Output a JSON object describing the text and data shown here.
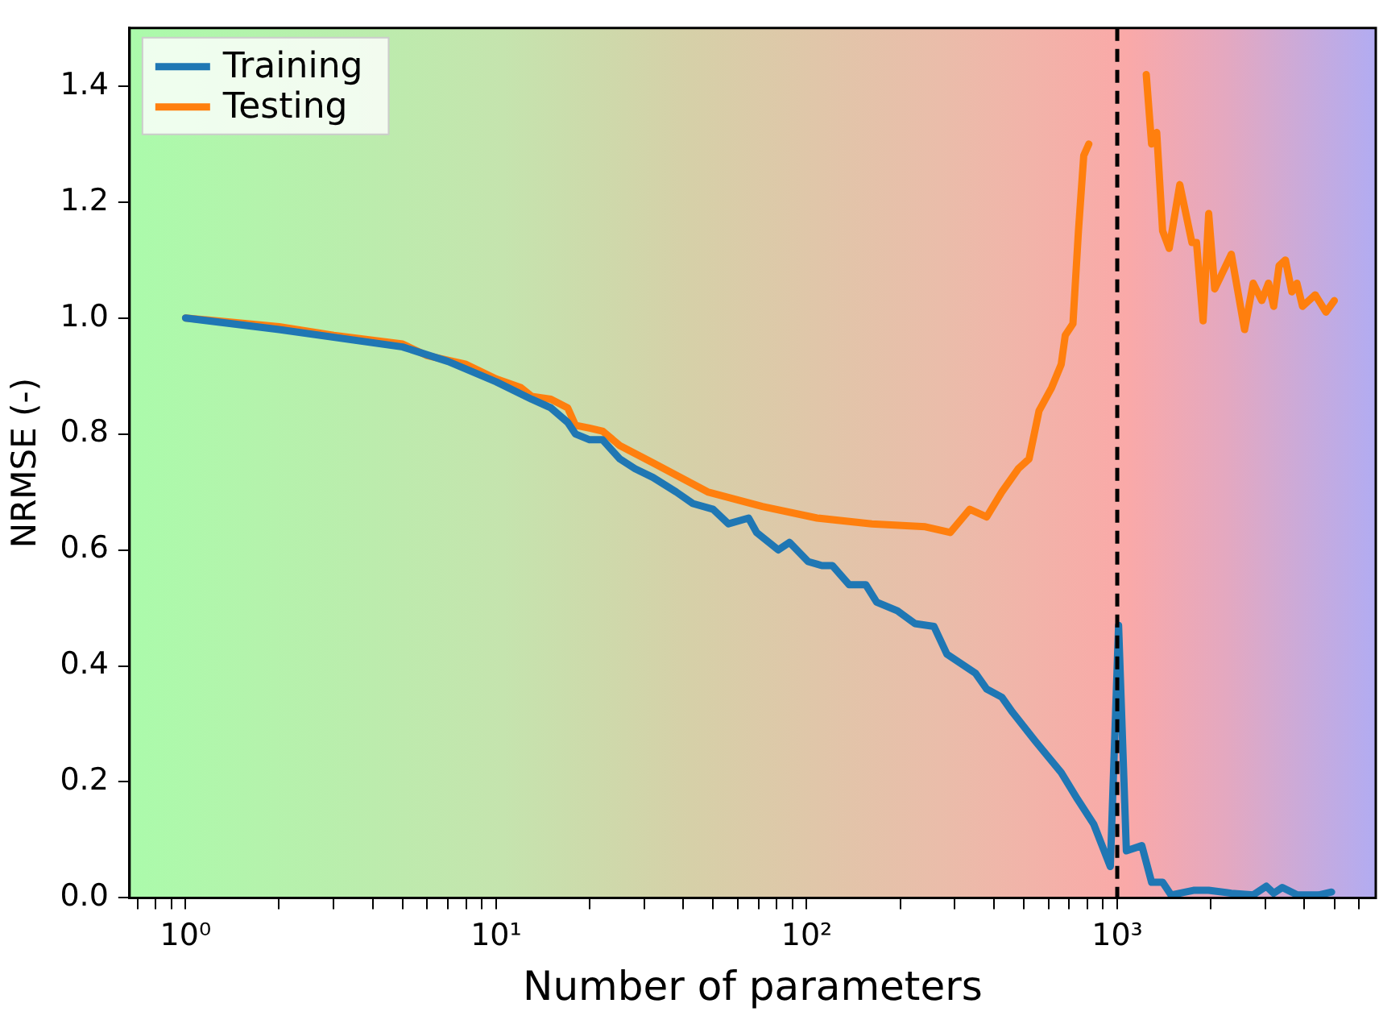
{
  "chart_data": {
    "type": "line",
    "xlabel": "Number of parameters",
    "ylabel": "NRMSE (-)",
    "log": "x",
    "grid": false,
    "legend": "top left",
    "marker": "none",
    "line_style": "solid",
    "xlim": [
      0.66,
      6800
    ],
    "ylim": [
      0,
      1.5
    ],
    "xticks": [
      {
        "value": 0.7,
        "label": null
      },
      {
        "value": 0.8,
        "label": null
      },
      {
        "value": 0.9,
        "label": null
      },
      {
        "value": 1,
        "label": "10⁰"
      },
      {
        "value": 2,
        "label": null
      },
      {
        "value": 3,
        "label": null
      },
      {
        "value": 4,
        "label": null
      },
      {
        "value": 5,
        "label": null
      },
      {
        "value": 6,
        "label": null
      },
      {
        "value": 7,
        "label": null
      },
      {
        "value": 8,
        "label": null
      },
      {
        "value": 9,
        "label": null
      },
      {
        "value": 10,
        "label": "10¹"
      },
      {
        "value": 20,
        "label": null
      },
      {
        "value": 30,
        "label": null
      },
      {
        "value": 40,
        "label": null
      },
      {
        "value": 50,
        "label": null
      },
      {
        "value": 60,
        "label": null
      },
      {
        "value": 70,
        "label": null
      },
      {
        "value": 80,
        "label": null
      },
      {
        "value": 90,
        "label": null
      },
      {
        "value": 100,
        "label": "10²"
      },
      {
        "value": 200,
        "label": null
      },
      {
        "value": 300,
        "label": null
      },
      {
        "value": 400,
        "label": null
      },
      {
        "value": 500,
        "label": null
      },
      {
        "value": 600,
        "label": null
      },
      {
        "value": 700,
        "label": null
      },
      {
        "value": 800,
        "label": null
      },
      {
        "value": 900,
        "label": null
      },
      {
        "value": 1000,
        "label": "10³"
      },
      {
        "value": 2000,
        "label": null
      },
      {
        "value": 3000,
        "label": null
      },
      {
        "value": 4000,
        "label": null
      },
      {
        "value": 5000,
        "label": null
      },
      {
        "value": 6000,
        "label": null
      }
    ],
    "yticks": [
      {
        "value": 0,
        "label": "0.0"
      },
      {
        "value": 0.2,
        "label": "0.2"
      },
      {
        "value": 0.4,
        "label": "0.4"
      },
      {
        "value": 0.6,
        "label": "0.6"
      },
      {
        "value": 0.8,
        "label": "0.8"
      },
      {
        "value": 1,
        "label": "1.0"
      },
      {
        "value": 1.2,
        "label": "1.2"
      },
      {
        "value": 1.4,
        "label": "1.4"
      }
    ],
    "ref_lines": [
      {
        "axis": "x",
        "value": 1000,
        "label": null,
        "color": "#000000",
        "line_style": "dashed"
      }
    ],
    "series": [
      {
        "name": "Training",
        "color": "#1f77b4",
        "x": [
          1,
          2,
          5,
          7,
          10,
          13,
          15,
          17,
          18,
          20,
          22,
          25,
          28,
          32,
          38,
          43,
          50,
          56,
          65,
          69,
          81,
          88,
          101,
          112,
          121,
          137,
          155,
          168,
          196,
          223,
          257,
          283,
          350,
          380,
          425,
          460,
          545,
          660,
          745,
          840,
          950,
          1010,
          1070,
          1200,
          1290,
          1400,
          1490,
          1760,
          1970,
          2330,
          2740,
          3020,
          3190,
          3400,
          3800,
          4450,
          4900
        ],
        "values": [
          1.0,
          0.98,
          0.95,
          0.925,
          0.89,
          0.86,
          0.845,
          0.82,
          0.8,
          0.79,
          0.79,
          0.757,
          0.74,
          0.725,
          0.7,
          0.68,
          0.67,
          0.645,
          0.655,
          0.63,
          0.6,
          0.613,
          0.58,
          0.573,
          0.573,
          0.54,
          0.54,
          0.51,
          0.495,
          0.473,
          0.468,
          0.42,
          0.387,
          0.36,
          0.346,
          0.32,
          0.27,
          0.216,
          0.17,
          0.127,
          0.054,
          0.47,
          0.081,
          0.09,
          0.027,
          0.027,
          0.005,
          0.013,
          0.013,
          0.008,
          0.005,
          0.02,
          0.008,
          0.018,
          0.005,
          0.005,
          0.01
        ]
      },
      {
        "name": "Testing",
        "color": "#ff7f0e",
        "x": [
          1,
          2,
          3,
          5,
          6,
          8,
          10,
          12,
          13,
          15,
          17,
          18,
          20,
          22,
          25,
          32,
          48,
          72,
          108,
          162,
          241,
          290,
          335,
          380,
          425,
          480,
          520,
          560,
          615,
          660,
          680,
          720,
          750,
          780,
          810,
          850,
          1000,
          1170,
          1240,
          1290,
          1340,
          1400,
          1470,
          1590,
          1740,
          1800,
          1890,
          1970,
          2060,
          2330,
          2570,
          2740,
          2920,
          3070,
          3190,
          3320,
          3480,
          3650,
          3790,
          3950,
          4340,
          4700,
          5000
        ],
        "values": [
          1.0,
          0.985,
          0.97,
          0.955,
          0.935,
          0.92,
          0.895,
          0.88,
          0.865,
          0.86,
          0.845,
          0.815,
          0.81,
          0.805,
          0.78,
          0.75,
          0.7,
          0.675,
          0.655,
          0.645,
          0.64,
          0.63,
          0.67,
          0.657,
          0.7,
          0.74,
          0.757,
          0.84,
          0.88,
          0.92,
          0.97,
          0.99,
          1.15,
          1.28,
          1.3,
          null,
          null,
          null,
          1.42,
          1.3,
          1.32,
          1.15,
          1.12,
          1.23,
          1.13,
          1.13,
          0.995,
          1.18,
          1.05,
          1.11,
          0.98,
          1.06,
          1.03,
          1.06,
          1.02,
          1.09,
          1.1,
          1.045,
          1.06,
          1.02,
          1.04,
          1.01,
          1.03
        ]
      }
    ]
  }
}
